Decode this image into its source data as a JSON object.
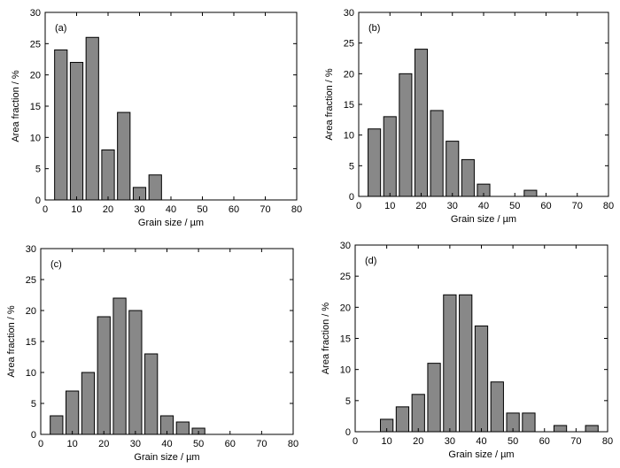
{
  "chart_data": [
    {
      "type": "bar",
      "panel": "(a)",
      "xlabel": "Grain size / µm",
      "ylabel": "Area fraction / %",
      "xlim": [
        0,
        80
      ],
      "ylim": [
        0,
        30
      ],
      "xticks": [
        0,
        10,
        20,
        30,
        40,
        50,
        60,
        70,
        80
      ],
      "yticks": [
        0,
        5,
        10,
        15,
        20,
        25,
        30
      ],
      "bin_width": 5,
      "x": [
        5,
        10,
        15,
        20,
        25,
        30,
        35
      ],
      "values": [
        24,
        22,
        26,
        8,
        14,
        2,
        4
      ]
    },
    {
      "type": "bar",
      "panel": "(b)",
      "xlabel": "Grain size / µm",
      "ylabel": "Area fraction / %",
      "xlim": [
        0,
        80
      ],
      "ylim": [
        0,
        30
      ],
      "xticks": [
        0,
        10,
        20,
        30,
        40,
        50,
        60,
        70,
        80
      ],
      "yticks": [
        0,
        5,
        10,
        15,
        20,
        25,
        30
      ],
      "bin_width": 5,
      "x": [
        5,
        10,
        15,
        20,
        25,
        30,
        35,
        40,
        55
      ],
      "values": [
        11,
        13,
        20,
        24,
        14,
        9,
        6,
        2,
        1
      ]
    },
    {
      "type": "bar",
      "panel": "(c)",
      "xlabel": "Grain size / µm",
      "ylabel": "Area fraction / %",
      "xlim": [
        0,
        80
      ],
      "ylim": [
        0,
        30
      ],
      "xticks": [
        0,
        10,
        20,
        30,
        40,
        50,
        60,
        70,
        80
      ],
      "yticks": [
        0,
        5,
        10,
        15,
        20,
        25,
        30
      ],
      "bin_width": 5,
      "x": [
        5,
        10,
        15,
        20,
        25,
        30,
        35,
        40,
        45,
        50
      ],
      "values": [
        3,
        7,
        10,
        19,
        22,
        20,
        13,
        3,
        2,
        1
      ]
    },
    {
      "type": "bar",
      "panel": "(d)",
      "xlabel": "Grain size / µm",
      "ylabel": "Area fraction / %",
      "xlim": [
        0,
        80
      ],
      "ylim": [
        0,
        30
      ],
      "xticks": [
        0,
        10,
        20,
        30,
        40,
        50,
        60,
        70,
        80
      ],
      "yticks": [
        0,
        5,
        10,
        15,
        20,
        25,
        30
      ],
      "bin_width": 5,
      "x": [
        10,
        15,
        20,
        25,
        30,
        35,
        40,
        45,
        50,
        55,
        65,
        75
      ],
      "values": [
        2,
        4,
        6,
        11,
        22,
        22,
        17,
        8,
        3,
        3,
        1,
        1
      ]
    }
  ],
  "style": {
    "bar_fill": "#888888",
    "bar_stroke": "#000000",
    "axis_color": "#000000"
  }
}
